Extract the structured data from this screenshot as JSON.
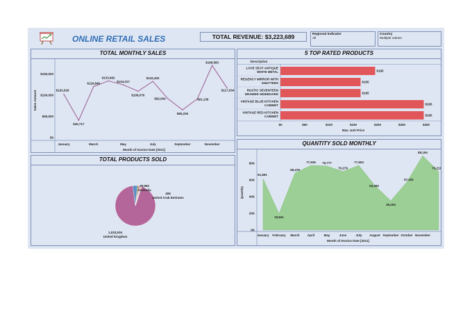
{
  "header": {
    "title": "ONLINE RETAIL SALES",
    "revenue": "TOTAL REVENUE: $3,223,689",
    "filter1_label": "Regional Indicator",
    "filter1_value": "All",
    "filter2_label": "Country",
    "filter2_value": "Multiple values",
    "title_color": "#2f6db5"
  },
  "monthly_sales": {
    "title": "TOTAL MONTHLY SALES",
    "ylabel": "Sales Amount",
    "xlabel": "Month of Invoice Date [2011]",
    "line_color": "#a0669a"
  },
  "top_products": {
    "title": "5 TOP RATED PRODUCTS",
    "col_header": "Description",
    "xlabel": "Max. Unit Price",
    "bar_color": "#e15759"
  },
  "products_sold": {
    "title": "TOTAL PRODUCTS SOLD"
  },
  "qty_monthly": {
    "title": "QUANTITY SOLD MONTHLY",
    "ylabel": "Quantity",
    "xlabel": "Month of Invoice Date [2011]",
    "fill_color": "#9bcf95"
  },
  "chart_data": [
    {
      "type": "line",
      "title": "TOTAL MONTHLY SALES",
      "x": [
        "January",
        "February",
        "March",
        "April",
        "May",
        "June",
        "July",
        "August",
        "September",
        "October",
        "November",
        "December"
      ],
      "xticks": [
        "January",
        "March",
        "May",
        "July",
        "September",
        "November"
      ],
      "values": [
        102029,
        40717,
        119846,
        133462,
        124317,
        109076,
        132402,
        92004,
        65226,
        91136,
        169583,
        117034
      ],
      "labels": [
        "$102,029",
        "$40,717",
        "$119,846",
        "$133,462",
        "$124,317",
        "$109,076",
        "$132,402",
        "$92,004",
        "$65,226",
        "$91,136",
        "$169,583",
        "$117,034"
      ],
      "yticks": [
        "$150,000",
        "$100,000",
        "$50,000",
        "$0"
      ],
      "ylim": [
        0,
        175000
      ],
      "xlabel": "Month of Invoice Date [2011]",
      "ylabel": "Sales Amount"
    },
    {
      "type": "bar",
      "title": "5 TOP RATED PRODUCTS",
      "categories": [
        [
          "LOVE SEAT ANTIQUE",
          "WHITE METAL"
        ],
        [
          "REGENCY MIRROR WITH",
          "SHUTTERS"
        ],
        [
          "RUSTIC  SEVENTEEN",
          "DRAWER SIDEBOARD"
        ],
        [
          "VINTAGE BLUE KITCHEN",
          "CABINET"
        ],
        [
          "VINTAGE RED KITCHEN",
          "CABINET"
        ]
      ],
      "values": [
        195,
        165,
        165,
        295,
        295
      ],
      "labels": [
        "$195",
        "$165",
        "$165",
        "$295",
        "$295"
      ],
      "xticks": [
        "$0",
        "$50",
        "$100",
        "$150",
        "$200",
        "$250",
        "$300"
      ],
      "xlim": [
        0,
        300
      ],
      "xlabel": "Max. Unit Price"
    },
    {
      "type": "pie",
      "title": "TOTAL PRODUCTS SOLD",
      "slices": [
        {
          "value": 1033516,
          "label": "1,033,516",
          "name": "United Kingdom",
          "color": "#b4669a"
        },
        {
          "value": 39950,
          "label": "39,950",
          "name": "Australia",
          "color": "#5b8fc7"
        },
        {
          "value": 9000,
          "label": "",
          "name": "",
          "color": "#4e9a4a"
        },
        {
          "value": 8000,
          "label": "",
          "name": "",
          "color": "#e15759"
        },
        {
          "value": 7000,
          "label": "",
          "name": "",
          "color": "#9c7fc0"
        },
        {
          "value": 6000,
          "label": "",
          "name": "",
          "color": "#f0a64a"
        },
        {
          "value": 5000,
          "label": "",
          "name": "",
          "color": "#e17aa8"
        },
        {
          "value": 4000,
          "label": "",
          "name": "",
          "color": "#76b7b2"
        },
        {
          "value": 406,
          "label": "406",
          "name": "United Arab Emirates",
          "color": "#edc948"
        }
      ]
    },
    {
      "type": "area",
      "title": "QUANTITY SOLD MONTHLY",
      "x": [
        "January",
        "February",
        "March",
        "April",
        "May",
        "June",
        "July",
        "August",
        "September",
        "October",
        "November",
        "December"
      ],
      "xticks": [
        "January",
        "February",
        "March",
        "April",
        "May",
        "June",
        "July",
        "August",
        "September",
        "October",
        "November"
      ],
      "values": [
        61691,
        19841,
        68479,
        77536,
        76777,
        70279,
        77604,
        53492,
        35194,
        57431,
        89194,
        70211
      ],
      "labels": [
        "61,691",
        "19,841",
        "68,479",
        "77,536",
        "76,777",
        "70,279",
        "77,604",
        "53,492",
        "35,194",
        "57,431",
        "89,194",
        "70,211"
      ],
      "yticks": [
        "80K",
        "60K",
        "40K",
        "20K",
        "0K"
      ],
      "ylim": [
        0,
        90000
      ],
      "xlabel": "Month of Invoice Date [2011]",
      "ylabel": "Quantity"
    }
  ]
}
